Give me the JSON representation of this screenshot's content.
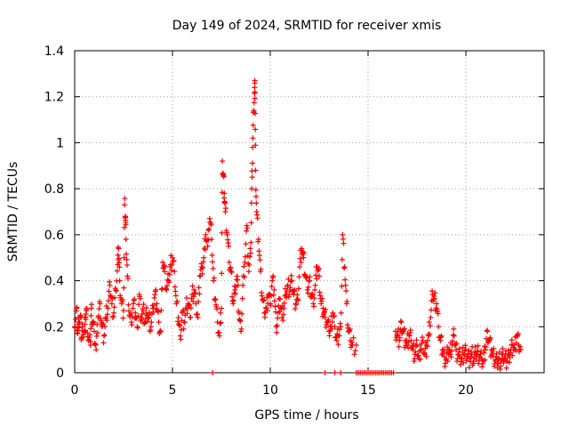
{
  "chart_data": {
    "type": "scatter",
    "title": "Day 149 of 2024, SRMTID for receiver xmis",
    "xlabel": "GPS time / hours",
    "ylabel": "SRMTID / TECUs",
    "xlim": [
      0,
      24
    ],
    "ylim": [
      0,
      1.4
    ],
    "xticks": [
      0,
      5,
      10,
      15,
      20
    ],
    "xtick_labels": [
      "0",
      "5",
      "10",
      "15",
      "20"
    ],
    "yticks": [
      0,
      0.2,
      0.4,
      0.6,
      0.8,
      1.0,
      1.2,
      1.4
    ],
    "ytick_labels": [
      "0",
      "0.2",
      "0.4",
      "0.6",
      "0.8",
      "1",
      "1.2",
      "1.4"
    ],
    "grid": true,
    "marker": "plus",
    "marker_color": "#ff0000",
    "series": [
      {
        "name": "SRMTID",
        "points": [
          [
            0.0,
            0.2
          ],
          [
            0.1,
            0.28
          ],
          [
            0.15,
            0.17
          ],
          [
            0.2,
            0.22
          ],
          [
            0.3,
            0.25
          ],
          [
            0.35,
            0.15
          ],
          [
            0.4,
            0.2
          ],
          [
            0.5,
            0.18
          ],
          [
            0.55,
            0.24
          ],
          [
            0.6,
            0.27
          ],
          [
            0.7,
            0.14
          ],
          [
            0.8,
            0.12
          ],
          [
            0.85,
            0.28
          ],
          [
            0.9,
            0.22
          ],
          [
            1.0,
            0.18
          ],
          [
            1.1,
            0.1
          ],
          [
            1.2,
            0.24
          ],
          [
            1.3,
            0.3
          ],
          [
            1.4,
            0.2
          ],
          [
            1.5,
            0.16
          ],
          [
            1.6,
            0.24
          ],
          [
            1.7,
            0.28
          ],
          [
            1.8,
            0.38
          ],
          [
            1.9,
            0.3
          ],
          [
            2.0,
            0.26
          ],
          [
            2.1,
            0.36
          ],
          [
            2.2,
            0.47
          ],
          [
            2.25,
            0.54
          ],
          [
            2.3,
            0.4
          ],
          [
            2.4,
            0.3
          ],
          [
            2.5,
            0.27
          ],
          [
            2.55,
            0.73
          ],
          [
            2.6,
            0.68
          ],
          [
            2.62,
            0.58
          ],
          [
            2.7,
            0.42
          ],
          [
            2.8,
            0.25
          ],
          [
            2.9,
            0.22
          ],
          [
            3.0,
            0.3
          ],
          [
            3.1,
            0.26
          ],
          [
            3.2,
            0.2
          ],
          [
            3.3,
            0.34
          ],
          [
            3.4,
            0.24
          ],
          [
            3.5,
            0.27
          ],
          [
            3.6,
            0.22
          ],
          [
            3.7,
            0.25
          ],
          [
            3.8,
            0.24
          ],
          [
            3.9,
            0.2
          ],
          [
            4.0,
            0.28
          ],
          [
            4.1,
            0.34
          ],
          [
            4.2,
            0.3
          ],
          [
            4.3,
            0.22
          ],
          [
            4.4,
            0.18
          ],
          [
            4.5,
            0.48
          ],
          [
            4.6,
            0.44
          ],
          [
            4.7,
            0.36
          ],
          [
            4.8,
            0.4
          ],
          [
            4.9,
            0.47
          ],
          [
            5.0,
            0.5
          ],
          [
            5.1,
            0.44
          ],
          [
            5.2,
            0.3
          ],
          [
            5.3,
            0.24
          ],
          [
            5.4,
            0.16
          ],
          [
            5.5,
            0.26
          ],
          [
            5.6,
            0.22
          ],
          [
            5.7,
            0.28
          ],
          [
            5.8,
            0.3
          ],
          [
            5.9,
            0.24
          ],
          [
            6.0,
            0.34
          ],
          [
            6.1,
            0.36
          ],
          [
            6.2,
            0.3
          ],
          [
            6.3,
            0.24
          ],
          [
            6.4,
            0.42
          ],
          [
            6.5,
            0.46
          ],
          [
            6.6,
            0.5
          ],
          [
            6.7,
            0.6
          ],
          [
            6.8,
            0.55
          ],
          [
            6.9,
            0.67
          ],
          [
            7.0,
            0.58
          ],
          [
            7.1,
            0.4
          ],
          [
            7.2,
            0.32
          ],
          [
            7.3,
            0.22
          ],
          [
            7.4,
            0.16
          ],
          [
            7.5,
            0.28
          ],
          [
            7.55,
            0.92
          ],
          [
            7.6,
            0.86
          ],
          [
            7.65,
            0.78
          ],
          [
            7.7,
            0.7
          ],
          [
            7.8,
            0.6
          ],
          [
            7.9,
            0.48
          ],
          [
            8.0,
            0.44
          ],
          [
            8.1,
            0.3
          ],
          [
            8.2,
            0.36
          ],
          [
            8.3,
            0.42
          ],
          [
            8.4,
            0.26
          ],
          [
            8.5,
            0.18
          ],
          [
            8.6,
            0.38
          ],
          [
            8.7,
            0.48
          ],
          [
            8.8,
            0.64
          ],
          [
            8.9,
            0.44
          ],
          [
            9.0,
            0.52
          ],
          [
            9.05,
            0.8
          ],
          [
            9.1,
            0.98
          ],
          [
            9.15,
            1.14
          ],
          [
            9.2,
            1.24
          ],
          [
            9.22,
            1.22
          ],
          [
            9.25,
            0.88
          ],
          [
            9.3,
            0.7
          ],
          [
            9.4,
            0.58
          ],
          [
            9.5,
            0.44
          ],
          [
            9.6,
            0.32
          ],
          [
            9.7,
            0.26
          ],
          [
            9.8,
            0.28
          ],
          [
            9.9,
            0.34
          ],
          [
            10.0,
            0.3
          ],
          [
            10.1,
            0.4
          ],
          [
            10.2,
            0.36
          ],
          [
            10.3,
            0.2
          ],
          [
            10.4,
            0.26
          ],
          [
            10.5,
            0.32
          ],
          [
            10.6,
            0.24
          ],
          [
            10.7,
            0.28
          ],
          [
            10.8,
            0.34
          ],
          [
            10.9,
            0.38
          ],
          [
            11.0,
            0.36
          ],
          [
            11.1,
            0.4
          ],
          [
            11.2,
            0.34
          ],
          [
            11.3,
            0.3
          ],
          [
            11.4,
            0.32
          ],
          [
            11.5,
            0.46
          ],
          [
            11.6,
            0.54
          ],
          [
            11.7,
            0.5
          ],
          [
            11.8,
            0.42
          ],
          [
            11.9,
            0.36
          ],
          [
            12.0,
            0.4
          ],
          [
            12.1,
            0.34
          ],
          [
            12.2,
            0.3
          ],
          [
            12.3,
            0.38
          ],
          [
            12.4,
            0.46
          ],
          [
            12.5,
            0.42
          ],
          [
            12.6,
            0.3
          ],
          [
            12.7,
            0.28
          ],
          [
            12.8,
            0.24
          ],
          [
            12.9,
            0.22
          ],
          [
            13.0,
            0.18
          ],
          [
            13.1,
            0.2
          ],
          [
            13.2,
            0.26
          ],
          [
            13.3,
            0.2
          ],
          [
            13.4,
            0.14
          ],
          [
            13.5,
            0.16
          ],
          [
            13.6,
            0.2
          ],
          [
            13.7,
            0.6
          ],
          [
            13.8,
            0.46
          ],
          [
            13.9,
            0.3
          ],
          [
            14.0,
            0.18
          ],
          [
            14.1,
            0.14
          ],
          [
            14.2,
            0.12
          ],
          [
            14.4,
            0.12
          ],
          [
            16.4,
            0.18
          ],
          [
            16.5,
            0.16
          ],
          [
            16.6,
            0.14
          ],
          [
            16.7,
            0.22
          ],
          [
            16.8,
            0.18
          ],
          [
            16.9,
            0.14
          ],
          [
            17.0,
            0.12
          ],
          [
            17.1,
            0.16
          ],
          [
            17.2,
            0.14
          ],
          [
            17.3,
            0.1
          ],
          [
            17.4,
            0.08
          ],
          [
            17.5,
            0.12
          ],
          [
            17.6,
            0.06
          ],
          [
            17.7,
            0.1
          ],
          [
            17.8,
            0.14
          ],
          [
            17.9,
            0.08
          ],
          [
            18.0,
            0.12
          ],
          [
            18.1,
            0.16
          ],
          [
            18.2,
            0.24
          ],
          [
            18.3,
            0.34
          ],
          [
            18.4,
            0.32
          ],
          [
            18.5,
            0.3
          ],
          [
            18.6,
            0.2
          ],
          [
            18.7,
            0.14
          ],
          [
            18.8,
            0.1
          ],
          [
            18.9,
            0.07
          ],
          [
            19.0,
            0.06
          ],
          [
            19.1,
            0.1
          ],
          [
            19.2,
            0.08
          ],
          [
            19.3,
            0.12
          ],
          [
            19.4,
            0.16
          ],
          [
            19.5,
            0.1
          ],
          [
            19.6,
            0.08
          ],
          [
            19.7,
            0.07
          ],
          [
            19.8,
            0.06
          ],
          [
            19.9,
            0.08
          ],
          [
            20.0,
            0.1
          ],
          [
            20.1,
            0.07
          ],
          [
            20.2,
            0.06
          ],
          [
            20.3,
            0.08
          ],
          [
            20.4,
            0.05
          ],
          [
            20.5,
            0.08
          ],
          [
            20.6,
            0.09
          ],
          [
            20.7,
            0.07
          ],
          [
            20.8,
            0.06
          ],
          [
            20.9,
            0.05
          ],
          [
            21.0,
            0.1
          ],
          [
            21.1,
            0.18
          ],
          [
            21.2,
            0.14
          ],
          [
            21.3,
            0.1
          ],
          [
            21.4,
            0.07
          ],
          [
            21.5,
            0.05
          ],
          [
            21.6,
            0.04
          ],
          [
            21.7,
            0.06
          ],
          [
            21.8,
            0.05
          ],
          [
            21.9,
            0.08
          ],
          [
            22.0,
            0.06
          ],
          [
            22.1,
            0.05
          ],
          [
            22.2,
            0.08
          ],
          [
            22.3,
            0.1
          ],
          [
            22.4,
            0.12
          ],
          [
            22.5,
            0.1
          ],
          [
            22.6,
            0.16
          ],
          [
            22.7,
            0.12
          ],
          [
            22.8,
            0.1
          ]
        ],
        "zero_points": [
          7.05,
          12.8,
          13.3,
          13.6,
          14.4,
          14.5,
          14.6,
          14.7,
          14.8,
          14.9,
          15.0,
          15.1,
          15.2,
          15.3,
          15.4,
          15.5,
          15.6,
          15.7,
          15.8,
          15.9,
          16.0,
          16.1,
          16.2,
          16.3
        ]
      }
    ]
  }
}
